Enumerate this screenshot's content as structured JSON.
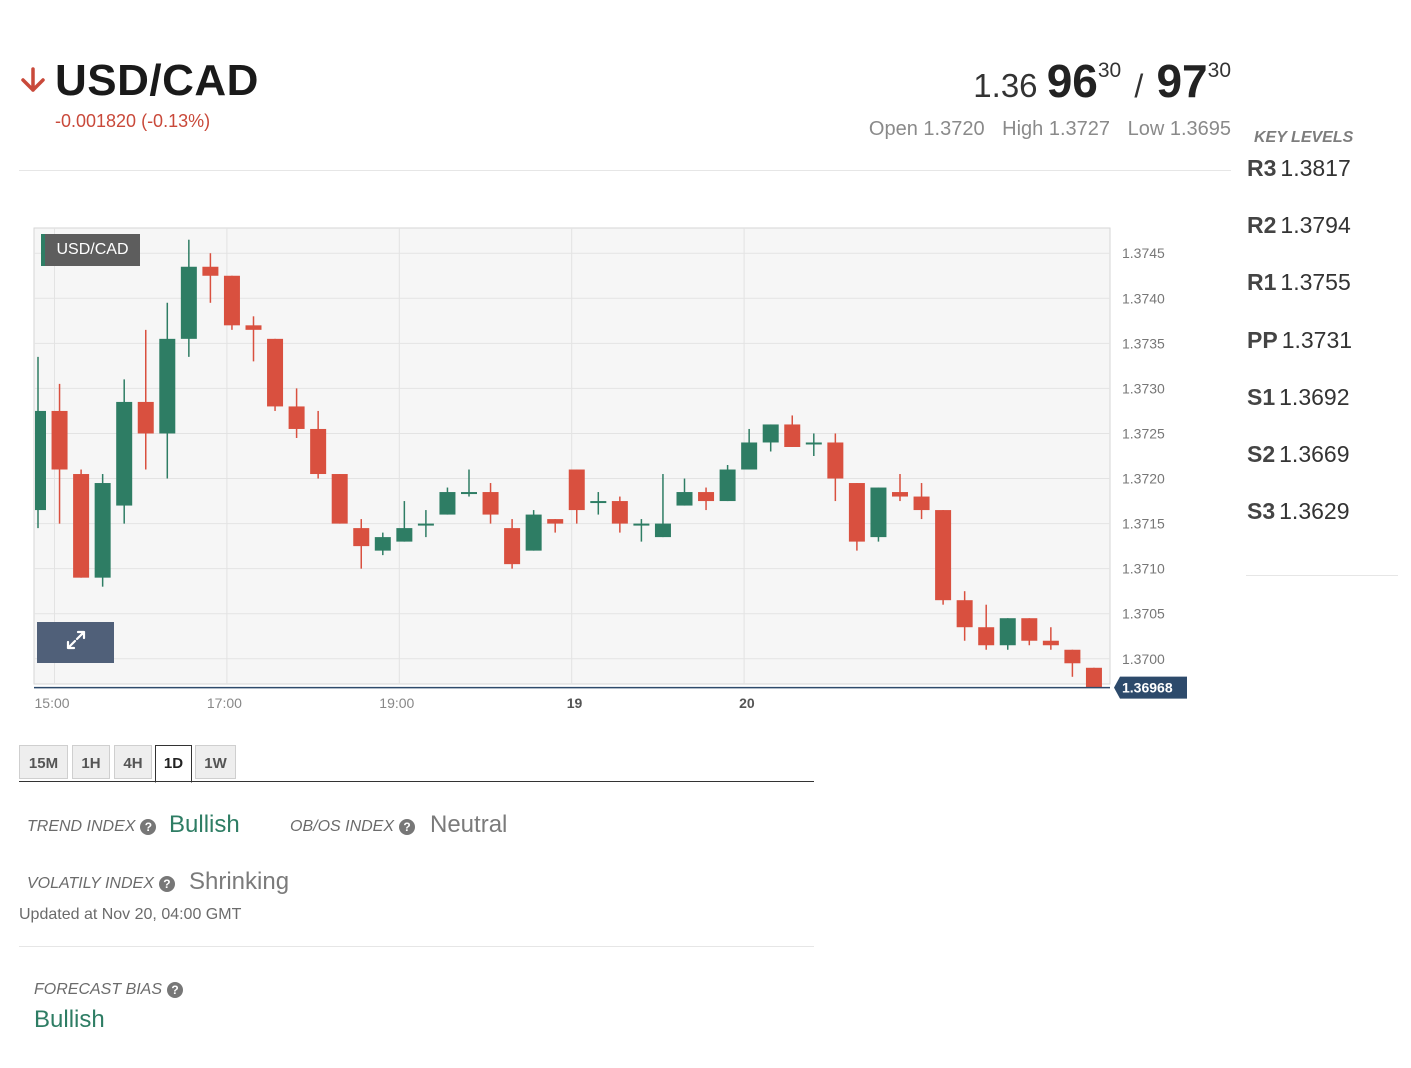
{
  "header": {
    "pair": "USD/CAD",
    "direction_icon": "arrow-down-icon",
    "change": "-0.001820 (-0.13%)",
    "down_color": "#c9493a"
  },
  "quote": {
    "bid_prefix": "1.36",
    "bid_big": "96",
    "bid_sup": "30",
    "separator": "/",
    "ask_big": "97",
    "ask_sup": "30"
  },
  "ohl": {
    "open": "Open 1.3720",
    "high": "High 1.3727",
    "low": "Low 1.3695"
  },
  "key_levels": {
    "title": "KEY LEVELS",
    "levels": [
      {
        "name": "R3",
        "value": "1.3817"
      },
      {
        "name": "R2",
        "value": "1.3794"
      },
      {
        "name": "R1",
        "value": "1.3755"
      },
      {
        "name": "PP",
        "value": "1.3731"
      },
      {
        "name": "S1",
        "value": "1.3692"
      },
      {
        "name": "S2",
        "value": "1.3669"
      },
      {
        "name": "S3",
        "value": "1.3629"
      }
    ]
  },
  "chart": {
    "label": "USD/CAD",
    "expand_icon": "expand-icon",
    "up_color": "#2e7d64",
    "down_color": "#d9503f",
    "price_tag_color": "#2d4a6b"
  },
  "chart_data": {
    "type": "candlestick",
    "title": "USD/CAD",
    "y_ticks": [
      "1.3745",
      "1.3740",
      "1.3735",
      "1.3730",
      "1.3725",
      "1.3720",
      "1.3715",
      "1.3710",
      "1.3705",
      "1.3700"
    ],
    "x_ticks": [
      {
        "label": "15:00",
        "index": 0,
        "bold": false
      },
      {
        "label": "17:00",
        "index": 8,
        "bold": false
      },
      {
        "label": "19:00",
        "index": 16,
        "bold": false
      },
      {
        "label": "19",
        "index": 24,
        "bold": true
      },
      {
        "label": "20",
        "index": 32,
        "bold": true
      }
    ],
    "ylim": [
      1.36972,
      1.37478
    ],
    "current_price": "1.36968",
    "current_price_value": 1.36968,
    "candles": [
      {
        "o": 1.37165,
        "h": 1.37335,
        "l": 1.37145,
        "c": 1.37275
      },
      {
        "o": 1.37275,
        "h": 1.37305,
        "l": 1.3715,
        "c": 1.3721
      },
      {
        "o": 1.37205,
        "h": 1.3721,
        "l": 1.3709,
        "c": 1.3709
      },
      {
        "o": 1.3709,
        "h": 1.37205,
        "l": 1.3708,
        "c": 1.37195
      },
      {
        "o": 1.3717,
        "h": 1.3731,
        "l": 1.3715,
        "c": 1.37285
      },
      {
        "o": 1.37285,
        "h": 1.37365,
        "l": 1.3721,
        "c": 1.3725
      },
      {
        "o": 1.3725,
        "h": 1.37395,
        "l": 1.372,
        "c": 1.37355
      },
      {
        "o": 1.37355,
        "h": 1.37465,
        "l": 1.37335,
        "c": 1.37435
      },
      {
        "o": 1.37435,
        "h": 1.3745,
        "l": 1.37395,
        "c": 1.37425
      },
      {
        "o": 1.37425,
        "h": 1.37425,
        "l": 1.37365,
        "c": 1.3737
      },
      {
        "o": 1.3737,
        "h": 1.3738,
        "l": 1.3733,
        "c": 1.37365
      },
      {
        "o": 1.37355,
        "h": 1.37355,
        "l": 1.37275,
        "c": 1.3728
      },
      {
        "o": 1.3728,
        "h": 1.373,
        "l": 1.37245,
        "c": 1.37255
      },
      {
        "o": 1.37255,
        "h": 1.37275,
        "l": 1.372,
        "c": 1.37205
      },
      {
        "o": 1.37205,
        "h": 1.37205,
        "l": 1.3715,
        "c": 1.3715
      },
      {
        "o": 1.37145,
        "h": 1.37155,
        "l": 1.371,
        "c": 1.37125
      },
      {
        "o": 1.3712,
        "h": 1.3714,
        "l": 1.37115,
        "c": 1.37135
      },
      {
        "o": 1.3713,
        "h": 1.37175,
        "l": 1.3713,
        "c": 1.37145
      },
      {
        "o": 1.3715,
        "h": 1.37165,
        "l": 1.37135,
        "c": 1.3715
      },
      {
        "o": 1.3716,
        "h": 1.3719,
        "l": 1.3716,
        "c": 1.37185
      },
      {
        "o": 1.37185,
        "h": 1.3721,
        "l": 1.3718,
        "c": 1.37185
      },
      {
        "o": 1.37185,
        "h": 1.37195,
        "l": 1.3715,
        "c": 1.3716
      },
      {
        "o": 1.37145,
        "h": 1.37155,
        "l": 1.371,
        "c": 1.37105
      },
      {
        "o": 1.3712,
        "h": 1.37165,
        "l": 1.3712,
        "c": 1.3716
      },
      {
        "o": 1.37155,
        "h": 1.37155,
        "l": 1.3714,
        "c": 1.3715
      },
      {
        "o": 1.3721,
        "h": 1.3721,
        "l": 1.3715,
        "c": 1.37165
      },
      {
        "o": 1.37175,
        "h": 1.37185,
        "l": 1.3716,
        "c": 1.37175
      },
      {
        "o": 1.37175,
        "h": 1.3718,
        "l": 1.3714,
        "c": 1.3715
      },
      {
        "o": 1.3715,
        "h": 1.37155,
        "l": 1.3713,
        "c": 1.3715
      },
      {
        "o": 1.37135,
        "h": 1.37205,
        "l": 1.37135,
        "c": 1.3715
      },
      {
        "o": 1.3717,
        "h": 1.372,
        "l": 1.3717,
        "c": 1.37185
      },
      {
        "o": 1.37185,
        "h": 1.3719,
        "l": 1.37165,
        "c": 1.37175
      },
      {
        "o": 1.37175,
        "h": 1.37215,
        "l": 1.37175,
        "c": 1.3721
      },
      {
        "o": 1.3721,
        "h": 1.37255,
        "l": 1.3721,
        "c": 1.3724
      },
      {
        "o": 1.3724,
        "h": 1.3726,
        "l": 1.3723,
        "c": 1.3726
      },
      {
        "o": 1.3726,
        "h": 1.3727,
        "l": 1.37235,
        "c": 1.37235
      },
      {
        "o": 1.3724,
        "h": 1.3725,
        "l": 1.37225,
        "c": 1.3724
      },
      {
        "o": 1.3724,
        "h": 1.3725,
        "l": 1.37175,
        "c": 1.372
      },
      {
        "o": 1.37195,
        "h": 1.37195,
        "l": 1.3712,
        "c": 1.3713
      },
      {
        "o": 1.37135,
        "h": 1.3719,
        "l": 1.3713,
        "c": 1.3719
      },
      {
        "o": 1.37185,
        "h": 1.37205,
        "l": 1.37175,
        "c": 1.3718
      },
      {
        "o": 1.3718,
        "h": 1.37195,
        "l": 1.37155,
        "c": 1.37165
      },
      {
        "o": 1.37165,
        "h": 1.37165,
        "l": 1.3706,
        "c": 1.37065
      },
      {
        "o": 1.37065,
        "h": 1.37075,
        "l": 1.3702,
        "c": 1.37035
      },
      {
        "o": 1.37035,
        "h": 1.3706,
        "l": 1.3701,
        "c": 1.37015
      },
      {
        "o": 1.37015,
        "h": 1.37045,
        "l": 1.3701,
        "c": 1.37045
      },
      {
        "o": 1.37045,
        "h": 1.37045,
        "l": 1.37015,
        "c": 1.3702
      },
      {
        "o": 1.3702,
        "h": 1.37035,
        "l": 1.3701,
        "c": 1.37015
      },
      {
        "o": 1.3701,
        "h": 1.3701,
        "l": 1.3698,
        "c": 1.36995
      },
      {
        "o": 1.3699,
        "h": 1.3699,
        "l": 1.3696,
        "c": 1.36968
      }
    ]
  },
  "timeframes": {
    "active": "1D",
    "items": [
      "15M",
      "1H",
      "4H",
      "1D",
      "1W"
    ]
  },
  "indices": {
    "trend_label": "TREND INDEX",
    "trend_value": "Bullish",
    "obos_label": "OB/OS INDEX",
    "obos_value": "Neutral",
    "volatility_label": "VOLATILY INDEX",
    "volatility_value": "Shrinking",
    "help_icon": "question-circle-icon",
    "updated": "Updated at Nov 20, 04:00 GMT"
  },
  "forecast": {
    "label": "FORECAST BIAS",
    "value": "Bullish"
  }
}
